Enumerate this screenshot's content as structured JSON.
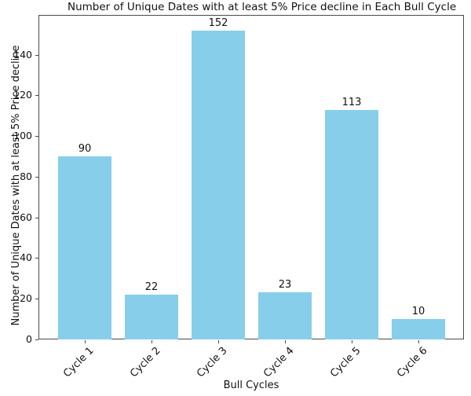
{
  "chart_data": {
    "type": "bar",
    "title": "Number of Unique Dates with at least 5% Price decline in Each Bull Cycle",
    "xlabel": "Bull Cycles",
    "ylabel": "Number of Unique Dates with at least 5% Price decline",
    "categories": [
      "Cycle 1",
      "Cycle 2",
      "Cycle 3",
      "Cycle 4",
      "Cycle 5",
      "Cycle 6"
    ],
    "values": [
      90,
      22,
      152,
      23,
      113,
      10
    ],
    "bar_labels": [
      "90",
      "22",
      "152",
      "23",
      "113",
      "10"
    ],
    "bar_color": "#87CEEB",
    "yticks": [
      0,
      20,
      40,
      60,
      80,
      100,
      120,
      140
    ],
    "ylim": [
      0,
      159.6
    ],
    "grid": false,
    "legend": false,
    "x_tick_rotation": 45
  }
}
